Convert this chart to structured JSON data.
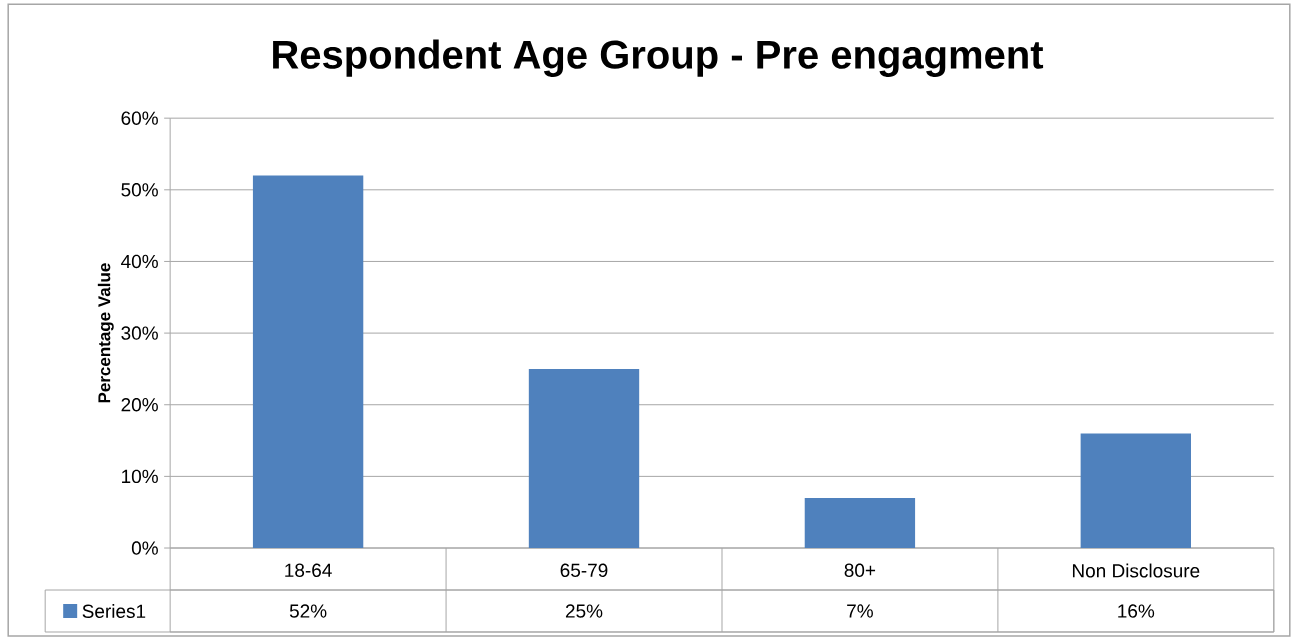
{
  "chart_data": {
    "type": "bar",
    "title": "Respondent Age Group - Pre engagment",
    "ylabel": "Percentage Value",
    "categories": [
      "18-64",
      "65-79",
      "80+",
      "Non Disclosure"
    ],
    "series": [
      {
        "name": "Series1",
        "color": "#4f81bd",
        "values": [
          52,
          25,
          7,
          16
        ],
        "value_labels": [
          "52%",
          "25%",
          "7%",
          "16%"
        ]
      }
    ],
    "ylim": [
      0,
      60
    ],
    "yticks": [
      {
        "value": 0,
        "label": "0%"
      },
      {
        "value": 10,
        "label": "10%"
      },
      {
        "value": 20,
        "label": "20%"
      },
      {
        "value": 30,
        "label": "30%"
      },
      {
        "value": 40,
        "label": "40%"
      },
      {
        "value": 50,
        "label": "50%"
      },
      {
        "value": 60,
        "label": "60%"
      }
    ],
    "grid": "y",
    "legend": "bottom"
  }
}
